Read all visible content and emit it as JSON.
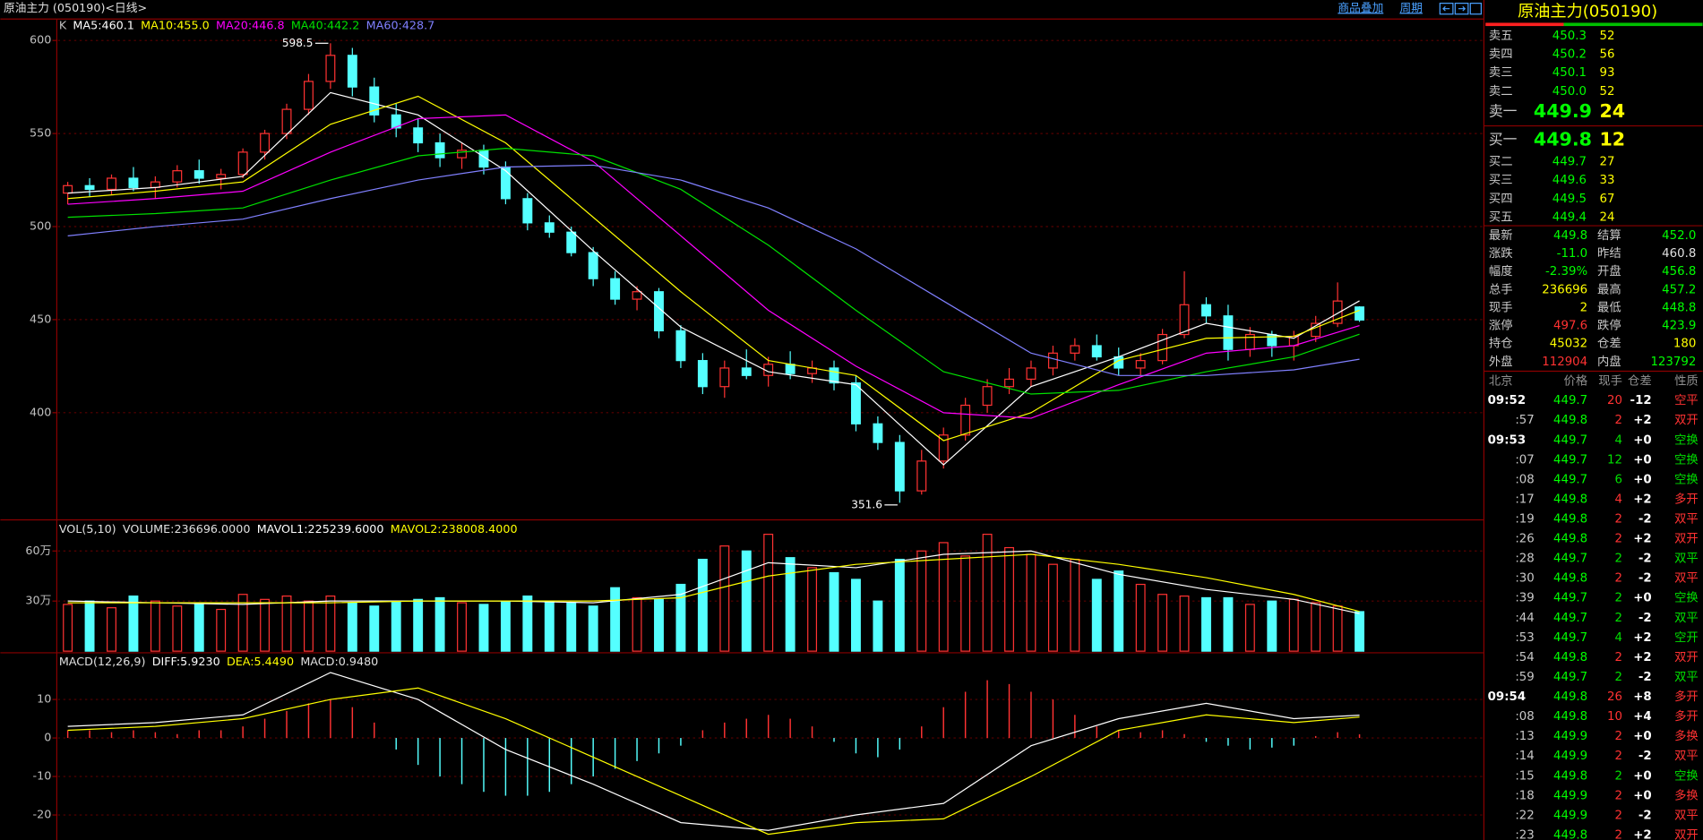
{
  "header": {
    "title": "原油主力 (050190)<日线>",
    "links": [
      "商品叠加",
      "周期"
    ]
  },
  "chart_data": [
    {
      "type": "candlestick",
      "legend_prefix": [
        "K"
      ],
      "legend_color": "#c0c0c0",
      "up_color": "#ff3232",
      "down_color": "#54ffff",
      "open": [
        518,
        522,
        520,
        526,
        521,
        524,
        530,
        526,
        528,
        540,
        550,
        563,
        578,
        592,
        575,
        560,
        553,
        545,
        537,
        541,
        532,
        515,
        502,
        497,
        486,
        472,
        461,
        465,
        444,
        428,
        414,
        424,
        420,
        426,
        421,
        424,
        416,
        394,
        384,
        358,
        374,
        388,
        404,
        414,
        418,
        424,
        432,
        436,
        430,
        424,
        428,
        442,
        458,
        452,
        434,
        442,
        436,
        441,
        448,
        456.8
      ],
      "high": [
        524,
        526,
        528,
        532,
        527,
        533,
        536,
        531,
        542,
        552,
        566,
        582,
        598.5,
        596,
        580,
        566,
        558,
        550,
        545,
        544,
        535,
        518,
        506,
        500,
        489,
        476,
        468,
        467,
        447,
        432,
        428,
        434,
        430,
        433,
        428,
        428,
        420,
        398,
        388,
        380,
        392,
        408,
        418,
        424,
        428,
        436,
        440,
        442,
        435,
        432,
        445,
        476,
        462,
        458,
        446,
        444,
        444,
        452,
        470,
        457.2
      ],
      "low": [
        512,
        516,
        517,
        519,
        515,
        521,
        523,
        520,
        526,
        536,
        547,
        560,
        574,
        570,
        556,
        548,
        540,
        532,
        531,
        528,
        512,
        498,
        494,
        484,
        468,
        458,
        455,
        440,
        424,
        410,
        408,
        418,
        414,
        418,
        416,
        412,
        390,
        380,
        351.6,
        356,
        370,
        385,
        400,
        410,
        414,
        420,
        428,
        428,
        420,
        420,
        426,
        440,
        448,
        428,
        430,
        430,
        428,
        438,
        446,
        448.8
      ],
      "close": [
        522,
        520,
        526,
        521,
        524,
        530,
        526,
        528,
        540,
        550,
        563,
        578,
        592,
        575,
        560,
        553,
        545,
        537,
        541,
        532,
        515,
        502,
        497,
        486,
        472,
        461,
        465,
        444,
        428,
        414,
        424,
        420,
        426,
        421,
        424,
        416,
        394,
        384,
        358,
        374,
        388,
        404,
        414,
        418,
        424,
        432,
        436,
        430,
        424,
        428,
        442,
        458,
        452,
        434,
        442,
        436,
        441,
        448,
        460,
        449.8
      ],
      "annotations": [
        {
          "label": "598.5",
          "value": 598.5
        },
        {
          "label": "351.6",
          "value": 351.6
        }
      ],
      "ylim": [
        343,
        606
      ],
      "yticks": [
        400,
        450,
        500,
        550,
        600
      ],
      "grid": true,
      "series_x": [
        0,
        4,
        8,
        12,
        16,
        20,
        24,
        28,
        32,
        36,
        40,
        44,
        48,
        52,
        56,
        59
      ],
      "series": [
        {
          "name": "MA5:460.1",
          "color": "#ffffff",
          "values": [
            518,
            521,
            527,
            572,
            560,
            530,
            487,
            446,
            422,
            415,
            372,
            414,
            430,
            448,
            440,
            460.1
          ]
        },
        {
          "name": "MA10:455.0",
          "color": "#ffff00",
          "values": [
            515,
            519,
            524,
            555,
            570,
            545,
            505,
            465,
            428,
            420,
            385,
            400,
            428,
            440,
            441,
            455.0
          ]
        },
        {
          "name": "MA20:446.8",
          "color": "#ff00ff",
          "values": [
            512,
            515,
            519,
            540,
            558,
            560,
            535,
            495,
            455,
            425,
            400,
            397,
            415,
            432,
            436,
            446.8
          ]
        },
        {
          "name": "MA40:442.2",
          "color": "#00e000",
          "values": [
            505,
            507,
            510,
            525,
            538,
            542,
            538,
            520,
            490,
            455,
            422,
            410,
            412,
            422,
            430,
            442.2
          ]
        },
        {
          "name": "MA60:428.7",
          "color": "#8080ff",
          "values": [
            495,
            500,
            504,
            515,
            525,
            532,
            533,
            525,
            510,
            488,
            460,
            432,
            420,
            420,
            423,
            428.7
          ]
        }
      ]
    },
    {
      "type": "volume",
      "legend_prefix": [
        "VOL(5,10)",
        "VOLUME:236696.0000"
      ],
      "legend_color": "#e0e0e0",
      "up_color": "#ff3232",
      "down_color": "#54ffff",
      "values": [
        28,
        30,
        26,
        33,
        30,
        27,
        29,
        25,
        34,
        31,
        33,
        30,
        33,
        29,
        27,
        30,
        31,
        32,
        29,
        28,
        30,
        33,
        30,
        29,
        27,
        38,
        32,
        31,
        40,
        55,
        63,
        60,
        70,
        56,
        50,
        47,
        43,
        30,
        55,
        60,
        65,
        57,
        70,
        62,
        58,
        52,
        55,
        43,
        48,
        40,
        34,
        33,
        32,
        32,
        28,
        30,
        31,
        29,
        27,
        23.67
      ],
      "ylim": [
        0,
        78
      ],
      "yticks": [
        {
          "value": 30,
          "label": "30万"
        },
        {
          "value": 60,
          "label": "60万"
        }
      ],
      "grid": true,
      "series_x": [
        0,
        4,
        8,
        12,
        16,
        20,
        24,
        28,
        32,
        36,
        40,
        44,
        48,
        52,
        56,
        59
      ],
      "series": [
        {
          "name": "MAVOL1:225239.6000",
          "color": "#ffffff",
          "values": [
            30,
            29,
            28,
            30,
            30,
            30,
            29,
            34,
            53,
            50,
            58,
            60,
            46,
            37,
            31,
            22.52
          ]
        },
        {
          "name": "MAVOL2:238008.4000",
          "color": "#ffff00",
          "values": [
            29,
            29,
            29,
            29,
            30,
            30,
            30,
            32,
            45,
            52,
            55,
            58,
            52,
            44,
            34,
            23.8
          ]
        }
      ]
    },
    {
      "type": "macd",
      "legend_prefix": [
        "MACD(12,26,9)"
      ],
      "legend_suffix": [
        "MACD:0.9480"
      ],
      "legend_color": "#e0e0e0",
      "up_color": "#ff3232",
      "down_color": "#54ffff",
      "values": [
        2,
        2,
        1.5,
        2,
        1.5,
        1,
        2,
        2,
        3,
        5,
        7,
        9,
        10,
        8,
        4,
        -3,
        -7,
        -10,
        -12,
        -14,
        -15,
        -15,
        -14,
        -12,
        -10,
        -8,
        -6,
        -4,
        -2,
        2,
        4,
        5,
        6,
        5,
        3,
        -1,
        -4,
        -5,
        -3,
        3,
        8,
        12,
        15,
        14,
        12,
        10,
        6,
        3,
        2,
        1.5,
        2,
        1,
        -1,
        -2,
        -3,
        -2.5,
        -2,
        0.5,
        1.5,
        0.948
      ],
      "ylim": [
        -26.5,
        21.7
      ],
      "yticks": [
        -20,
        -10,
        0,
        10
      ],
      "grid": true,
      "series_x": [
        0,
        4,
        8,
        12,
        16,
        20,
        24,
        28,
        32,
        36,
        40,
        44,
        48,
        52,
        56,
        59
      ],
      "series": [
        {
          "name": "DIFF:5.9230",
          "color": "#ffffff",
          "values": [
            3,
            4,
            6,
            17,
            10,
            -3,
            -12,
            -22,
            -24,
            -20,
            -17,
            -2,
            5,
            9,
            5,
            5.923
          ]
        },
        {
          "name": "DEA:5.4490",
          "color": "#ffff00",
          "values": [
            2,
            3,
            5,
            10,
            13,
            5,
            -5,
            -15,
            -25,
            -22,
            -21,
            -10,
            2,
            6,
            4,
            5.449
          ]
        }
      ]
    }
  ],
  "quote": {
    "title": "原油主力(050190)",
    "price_color": "#00ff00",
    "volume_color": "#ffff00",
    "asks": [
      {
        "label": "卖五",
        "price": "450.3",
        "volume": "52"
      },
      {
        "label": "卖四",
        "price": "450.2",
        "volume": "56"
      },
      {
        "label": "卖三",
        "price": "450.1",
        "volume": "93"
      },
      {
        "label": "卖二",
        "price": "450.0",
        "volume": "52"
      },
      {
        "label": "卖一",
        "price": "449.9",
        "volume": "24"
      }
    ],
    "bids": [
      {
        "label": "买一",
        "price": "449.8",
        "volume": "12"
      },
      {
        "label": "买二",
        "price": "449.7",
        "volume": "27"
      },
      {
        "label": "买三",
        "price": "449.6",
        "volume": "33"
      },
      {
        "label": "买四",
        "price": "449.5",
        "volume": "67"
      },
      {
        "label": "买五",
        "price": "449.4",
        "volume": "24"
      }
    ],
    "stats": [
      {
        "label": "最新",
        "value": "449.8",
        "color": "#00ff00",
        "label2": "结算",
        "value2": "452.0",
        "color2": "#00ff00"
      },
      {
        "label": "涨跌",
        "value": "-11.0",
        "color": "#00ff00",
        "label2": "昨结",
        "value2": "460.8",
        "color2": "#e0e0e0"
      },
      {
        "label": "幅度",
        "value": "-2.39%",
        "color": "#00ff00",
        "label2": "开盘",
        "value2": "456.8",
        "color2": "#00ff00"
      },
      {
        "label": "总手",
        "value": "236696",
        "color": "#ffff00",
        "label2": "最高",
        "value2": "457.2",
        "color2": "#00ff00"
      },
      {
        "label": "现手",
        "value": "2",
        "color": "#ffff00",
        "label2": "最低",
        "value2": "448.8",
        "color2": "#00ff00"
      },
      {
        "label": "涨停",
        "value": "497.6",
        "color": "#ff3232",
        "label2": "跌停",
        "value2": "423.9",
        "color2": "#00ff00"
      },
      {
        "label": "持仓",
        "value": "45032",
        "color": "#ffff00",
        "label2": "仓差",
        "value2": "180",
        "color2": "#ffff00"
      },
      {
        "label": "外盘",
        "value": "112904",
        "color": "#ff3232",
        "label2": "内盘",
        "value2": "123792",
        "color2": "#00ff00"
      }
    ],
    "ticks": {
      "header": [
        "北京",
        "价格",
        "现手",
        "仓差",
        "性质"
      ],
      "rows": [
        {
          "time": "09:52",
          "price": "449.7",
          "volume": "20",
          "change": "-12",
          "type": "空平",
          "color": "#ff3232"
        },
        {
          "time": ":57",
          "price": "449.8",
          "volume": "2",
          "change": "+2",
          "type": "双开",
          "color": "#ff3232"
        },
        {
          "time": "09:53",
          "price": "449.7",
          "volume": "4",
          "change": "+0",
          "type": "空换",
          "color": "#00e000"
        },
        {
          "time": ":07",
          "price": "449.7",
          "volume": "12",
          "change": "+0",
          "type": "空换",
          "color": "#00e000"
        },
        {
          "time": ":08",
          "price": "449.7",
          "volume": "6",
          "change": "+0",
          "type": "空换",
          "color": "#00e000"
        },
        {
          "time": ":17",
          "price": "449.8",
          "volume": "4",
          "change": "+2",
          "type": "多开",
          "color": "#ff3232"
        },
        {
          "time": ":19",
          "price": "449.8",
          "volume": "2",
          "change": "-2",
          "type": "双平",
          "color": "#ff3232"
        },
        {
          "time": ":26",
          "price": "449.8",
          "volume": "2",
          "change": "+2",
          "type": "双开",
          "color": "#ff3232"
        },
        {
          "time": ":28",
          "price": "449.7",
          "volume": "2",
          "change": "-2",
          "type": "双平",
          "color": "#00e000"
        },
        {
          "time": ":30",
          "price": "449.8",
          "volume": "2",
          "change": "-2",
          "type": "双平",
          "color": "#ff3232"
        },
        {
          "time": ":39",
          "price": "449.7",
          "volume": "2",
          "change": "+0",
          "type": "空换",
          "color": "#00e000"
        },
        {
          "time": ":44",
          "price": "449.7",
          "volume": "2",
          "change": "-2",
          "type": "双平",
          "color": "#00e000"
        },
        {
          "time": ":53",
          "price": "449.7",
          "volume": "4",
          "change": "+2",
          "type": "空开",
          "color": "#00e000"
        },
        {
          "time": ":54",
          "price": "449.8",
          "volume": "2",
          "change": "+2",
          "type": "双开",
          "color": "#ff3232"
        },
        {
          "time": ":59",
          "price": "449.7",
          "volume": "2",
          "change": "-2",
          "type": "双平",
          "color": "#00e000"
        },
        {
          "time": "09:54",
          "price": "449.8",
          "volume": "26",
          "change": "+8",
          "type": "多开",
          "color": "#ff3232"
        },
        {
          "time": ":08",
          "price": "449.8",
          "volume": "10",
          "change": "+4",
          "type": "多开",
          "color": "#ff3232"
        },
        {
          "time": ":13",
          "price": "449.9",
          "volume": "2",
          "change": "+0",
          "type": "多换",
          "color": "#ff3232"
        },
        {
          "time": ":14",
          "price": "449.9",
          "volume": "2",
          "change": "-2",
          "type": "双平",
          "color": "#ff3232"
        },
        {
          "time": ":15",
          "price": "449.8",
          "volume": "2",
          "change": "+0",
          "type": "空换",
          "color": "#00e000"
        },
        {
          "time": ":18",
          "price": "449.9",
          "volume": "2",
          "change": "+0",
          "type": "多换",
          "color": "#ff3232"
        },
        {
          "time": ":22",
          "price": "449.9",
          "volume": "2",
          "change": "-2",
          "type": "双平",
          "color": "#ff3232"
        },
        {
          "time": ":23",
          "price": "449.8",
          "volume": "2",
          "change": "+2",
          "type": "双开",
          "color": "#ff3232"
        }
      ]
    }
  }
}
